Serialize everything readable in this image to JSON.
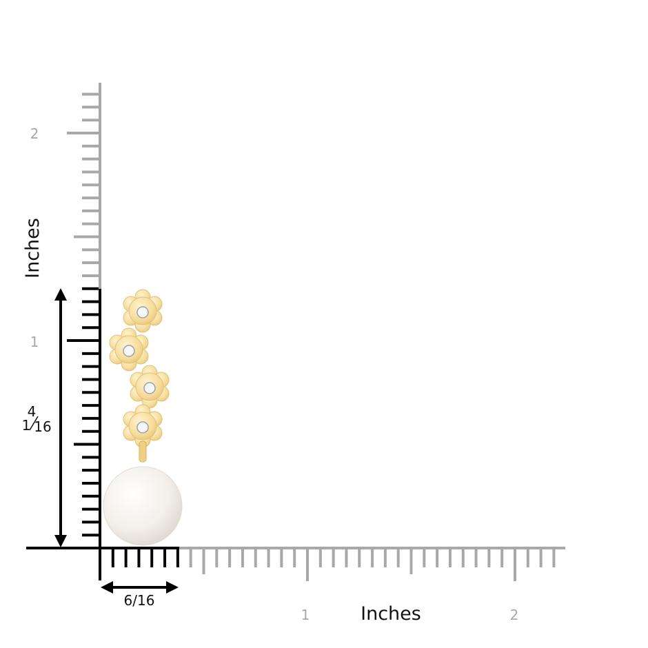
{
  "vertical_axis": {
    "label": "Inches",
    "ticks": [
      "1",
      "2"
    ]
  },
  "horizontal_axis": {
    "label": "Inches",
    "ticks": [
      "1",
      "2"
    ]
  },
  "dimensions": {
    "height": {
      "whole": "1",
      "numerator": "4",
      "denominator": "16"
    },
    "width": "6/16"
  }
}
